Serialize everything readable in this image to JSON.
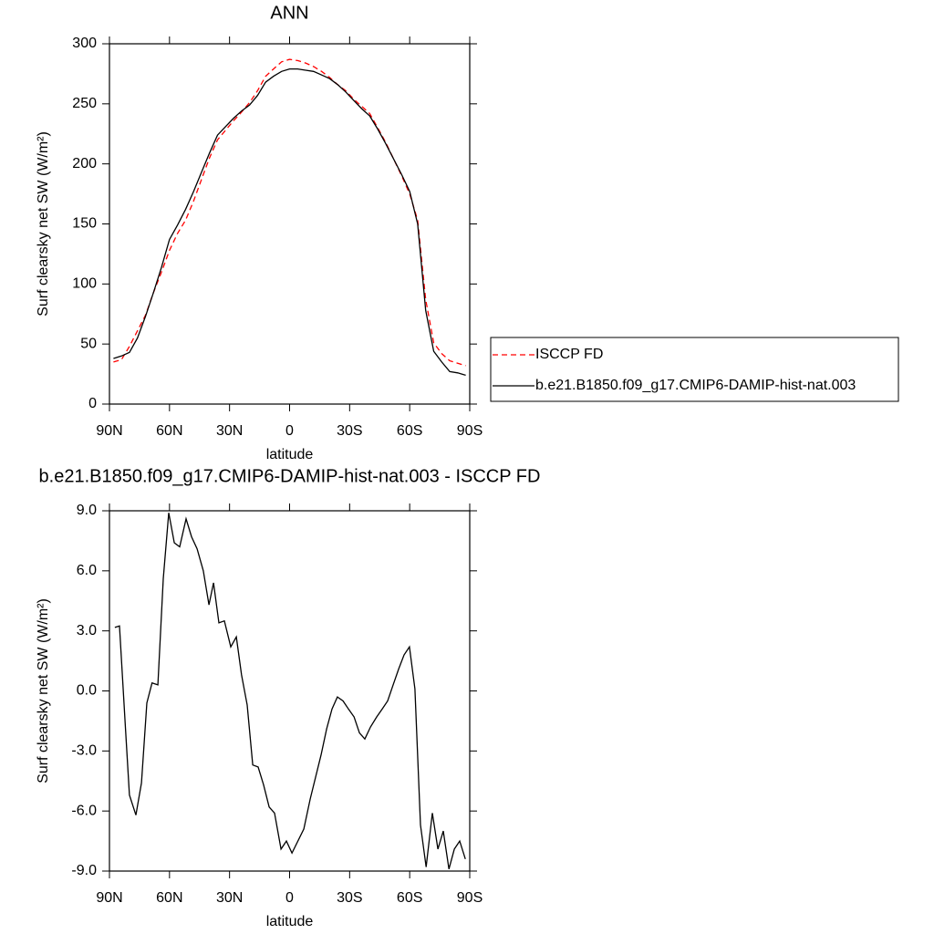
{
  "chart_data": [
    {
      "type": "line",
      "title": "ANN",
      "xlabel": "latitude",
      "ylabel": "Surf clearsky net SW (W/m²)",
      "x": [
        88,
        84,
        80,
        76,
        72,
        68,
        64,
        60,
        56,
        52,
        48,
        44,
        40,
        36,
        32,
        28,
        24,
        20,
        16,
        12,
        8,
        4,
        0,
        -4,
        -8,
        -12,
        -16,
        -20,
        -24,
        -28,
        -32,
        -36,
        -40,
        -44,
        -48,
        -52,
        -56,
        -60,
        -64,
        -68,
        -72,
        -76,
        -80,
        -84,
        -88
      ],
      "xlim": [
        90,
        -90
      ],
      "xticks": [
        {
          "value": 90,
          "label": "90N"
        },
        {
          "value": 60,
          "label": "60N"
        },
        {
          "value": 30,
          "label": "30N"
        },
        0,
        {
          "value": -30,
          "label": "30S"
        },
        {
          "value": -60,
          "label": "60S"
        },
        {
          "value": -90,
          "label": "90S"
        }
      ],
      "ylim": [
        0,
        300
      ],
      "yticks": [
        0,
        50,
        100,
        150,
        200,
        250,
        300
      ],
      "series": [
        {
          "name": "ISCCP FD",
          "color": "#ff0000",
          "dashed": true,
          "values": [
            35,
            37,
            48,
            61,
            74,
            93,
            110,
            128,
            142,
            153,
            169,
            187,
            205,
            220,
            228,
            236,
            243,
            251,
            261,
            273,
            279,
            285,
            287,
            286,
            284,
            281,
            277,
            272,
            266,
            261,
            254,
            248,
            242,
            230,
            218,
            204,
            190,
            175,
            153,
            87,
            51,
            42,
            36,
            34,
            32
          ]
        },
        {
          "name": "b.e21.B1850.f09_g17.CMIP6-DAMIP-hist-nat.003",
          "color": "#000000",
          "dashed": false,
          "values": [
            38,
            40,
            43,
            55,
            73,
            93,
            114,
            137,
            149,
            162,
            177,
            193,
            209,
            224,
            231,
            238,
            244,
            249,
            257,
            268,
            273,
            277,
            279,
            279,
            278,
            277,
            274,
            271,
            266,
            260,
            253,
            246,
            240,
            229,
            217,
            204,
            191,
            177,
            150,
            78,
            44,
            35,
            27,
            26,
            24
          ]
        }
      ]
    },
    {
      "type": "line",
      "title": "b.e21.B1850.f09_g17.CMIP6-DAMIP-hist-nat.003 - ISCCP FD",
      "xlabel": "latitude",
      "ylabel": "Surf clearsky net SW (W/m²)",
      "x": [
        87.3,
        85,
        82,
        80,
        76.8,
        74,
        71.3,
        68.7,
        65.8,
        63.1,
        60.4,
        57.6,
        54.9,
        51.7,
        49,
        46.2,
        43.1,
        40.3,
        38,
        35.3,
        32.6,
        29.4,
        26.6,
        24,
        21.2,
        18.4,
        15.7,
        13,
        10.2,
        7.5,
        4.3,
        1.6,
        -1.2,
        -7.1,
        -10.3,
        -15.7,
        -18.5,
        -21.2,
        -23.9,
        -26.7,
        -29.4,
        -32.2,
        -34.9,
        -37.6,
        -40.4,
        -43.5,
        -46.3,
        -49,
        -51.7,
        -54.5,
        -57.2,
        -59.9,
        -62.6,
        -65.4,
        -68.2,
        -71.3,
        -74.1,
        -76.8,
        -79.6,
        -82.3,
        -85,
        -87.8
      ],
      "values": [
        3.17,
        3.25,
        -1.9,
        -5.2,
        -6.2,
        -4.6,
        -0.6,
        0.4,
        0.3,
        5.6,
        8.9,
        7.4,
        7.2,
        8.6,
        7.7,
        7.1,
        6.0,
        4.3,
        5.4,
        3.4,
        3.5,
        2.2,
        2.7,
        0.8,
        -0.7,
        -3.7,
        -3.8,
        -4.7,
        -5.8,
        -6.1,
        -7.9,
        -7.5,
        -8.1,
        -6.9,
        -5.4,
        -3.2,
        -1.9,
        -0.9,
        -0.3,
        -0.5,
        -0.9,
        -1.3,
        -2.1,
        -2.4,
        -1.8,
        -1.3,
        -0.9,
        -0.5,
        0.3,
        1.1,
        1.8,
        2.2,
        0.1,
        -6.7,
        -8.8,
        -6.1,
        -7.9,
        -7.0,
        -8.9,
        -7.9,
        -7.5,
        -8.4
      ],
      "color": "#000000",
      "xlim": [
        90,
        -90
      ],
      "xticks": [
        {
          "value": 90,
          "label": "90N"
        },
        {
          "value": 60,
          "label": "60N"
        },
        {
          "value": 30,
          "label": "30N"
        },
        0,
        {
          "value": -30,
          "label": "30S"
        },
        {
          "value": -60,
          "label": "60S"
        },
        {
          "value": -90,
          "label": "90S"
        }
      ],
      "ylim": [
        -9,
        9
      ],
      "yticks": [
        {
          "value": -9,
          "label": "-9.0"
        },
        {
          "value": -6,
          "label": "-6.0"
        },
        {
          "value": -3,
          "label": "-3.0"
        },
        {
          "value": 0,
          "label": "0.0"
        },
        {
          "value": 3,
          "label": "3.0"
        },
        {
          "value": 6,
          "label": "6.0"
        },
        {
          "value": 9,
          "label": "9.0"
        }
      ]
    }
  ]
}
